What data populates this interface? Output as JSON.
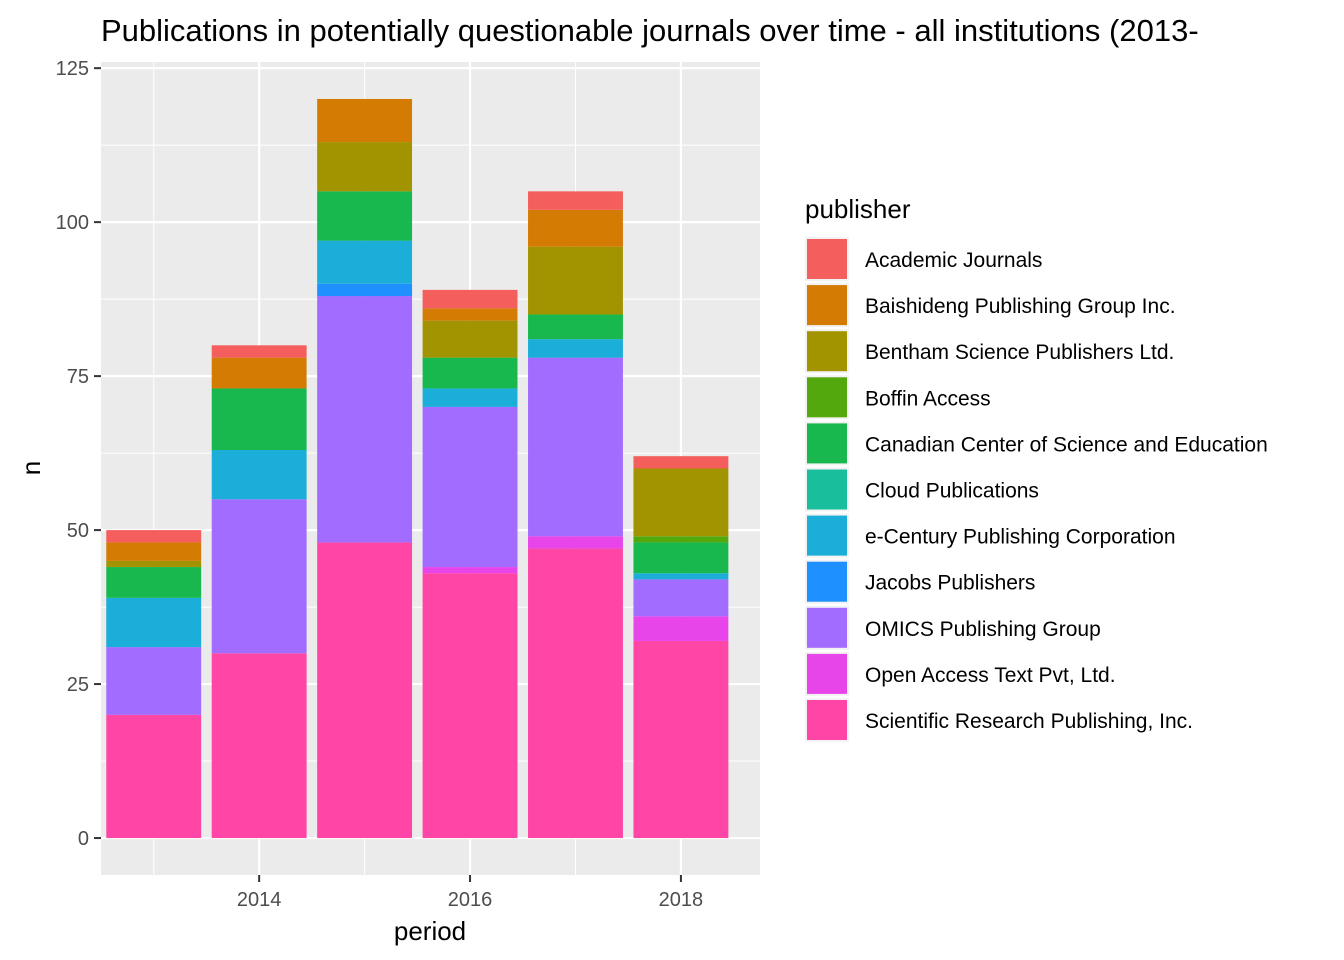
{
  "chart_data": {
    "type": "bar",
    "stacked": true,
    "title": "Publications in potentially questionable journals over time - all institutions (2013-",
    "xlabel": "period",
    "ylabel": "n",
    "x": [
      2013,
      2014,
      2015,
      2016,
      2017,
      2018
    ],
    "x_ticks": [
      2014,
      2016,
      2018
    ],
    "y_ticks": [
      0,
      25,
      50,
      75,
      100,
      125
    ],
    "xlim": [
      2012.5,
      2018.75
    ],
    "ylim": [
      -6,
      126
    ],
    "grid": true,
    "legend": {
      "title": "publisher",
      "position": "right"
    },
    "series": [
      {
        "name": "Scientific Research Publishing, Inc.",
        "color": "#FF45A6",
        "values": [
          20,
          30,
          48,
          43,
          47,
          32
        ]
      },
      {
        "name": "Open Access Text Pvt, Ltd.",
        "color": "#E745EA",
        "values": [
          0,
          0,
          0,
          1,
          2,
          4
        ]
      },
      {
        "name": "OMICS Publishing Group",
        "color": "#A16CFF",
        "values": [
          11,
          25,
          40,
          26,
          29,
          6
        ]
      },
      {
        "name": "Jacobs Publishers",
        "color": "#1F90FF",
        "values": [
          0,
          0,
          2,
          0,
          0,
          0
        ]
      },
      {
        "name": "e-Century Publishing Corporation",
        "color": "#1AAED8",
        "values": [
          8,
          8,
          7,
          3,
          3,
          1
        ]
      },
      {
        "name": "Cloud Publications",
        "color": "#19BE9C",
        "values": [
          0,
          0,
          0,
          0,
          0,
          0
        ]
      },
      {
        "name": "Canadian Center of Science and Education",
        "color": "#19B84E",
        "values": [
          5,
          10,
          8,
          5,
          4,
          5
        ]
      },
      {
        "name": "Boffin Access",
        "color": "#52A80C",
        "values": [
          0,
          0,
          0,
          0,
          0,
          1
        ]
      },
      {
        "name": "Bentham Science Publishers Ltd.",
        "color": "#A19400",
        "values": [
          1,
          0,
          8,
          6,
          11,
          11
        ]
      },
      {
        "name": "Baishideng Publishing Group Inc.",
        "color": "#D47B03",
        "values": [
          3,
          5,
          7,
          2,
          6,
          0
        ]
      },
      {
        "name": "Academic Journals",
        "color": "#F45E5C",
        "values": [
          2,
          2,
          0,
          3,
          3,
          2
        ]
      }
    ],
    "legend_order": [
      "Academic Journals",
      "Baishideng Publishing Group Inc.",
      "Bentham Science Publishers Ltd.",
      "Boffin Access",
      "Canadian Center of Science and Education",
      "Cloud Publications",
      "e-Century Publishing Corporation",
      "Jacobs Publishers",
      "OMICS Publishing Group",
      "Open Access Text Pvt, Ltd.",
      "Scientific Research Publishing, Inc."
    ]
  }
}
